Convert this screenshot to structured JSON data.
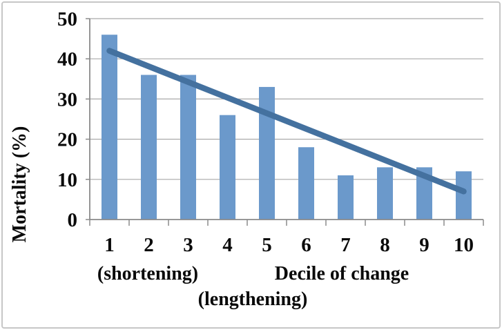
{
  "chart_data": {
    "type": "bar",
    "title": "",
    "categories": [
      "1",
      "2",
      "3",
      "4",
      "5",
      "6",
      "7",
      "8",
      "9",
      "10"
    ],
    "values": [
      46,
      36,
      36,
      26,
      33,
      18,
      11,
      13,
      13,
      12
    ],
    "series_name": "Mortality",
    "xlabel": "Decile of change",
    "xlabel_left_annotation": "(shortening)",
    "xlabel_bottom_annotation": "(lengthening)",
    "ylabel": "Mortality (%)",
    "ylim": [
      0,
      50
    ],
    "yticks": [
      0,
      10,
      20,
      30,
      40,
      50
    ],
    "grid": "horizontal",
    "legend": "none",
    "trendline": {
      "from_category": "1",
      "from_value": 42,
      "to_category": "10",
      "to_value": 7
    },
    "colors": {
      "bar_fill": "#6b99cb",
      "trend_line": "#44719f",
      "gridline": "#a9a9a9",
      "axis_line": "#8a8a8a",
      "text": "#0a0a0a",
      "frame_border": "#c6c6c6",
      "background": "#ffffff"
    }
  }
}
